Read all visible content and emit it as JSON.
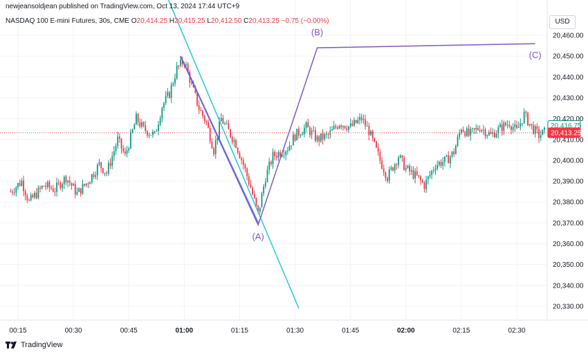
{
  "header": {
    "publisher": "newjeansoldjean published on TradingView.com, Oct 13, 2024 17:44 UTC+9",
    "symbol": "NASDAQ 100 E-mini Futures, 30s, CME",
    "o_label": "O",
    "o_value": "20,414.25",
    "h_label": "H",
    "h_value": "20,415.25",
    "l_label": "L",
    "l_value": "20,412.50",
    "c_label": "C",
    "c_value": "20,413.25 −0.75 (−0.00%)",
    "currency": "USD"
  },
  "footer": {
    "brand": "TradingView"
  },
  "chart_data": {
    "type": "candlestick",
    "title": "",
    "y_axis": {
      "position": "right",
      "range": [
        20325,
        20465
      ],
      "ticks": [
        20330,
        20340,
        20350,
        20360,
        20370,
        20380,
        20390,
        20400,
        20410,
        20420,
        20430,
        20440,
        20450,
        20460
      ],
      "tick_labels": [
        "20,330.00",
        "20,340.00",
        "20,350.00",
        "20,360.00",
        "20,370.00",
        "20,380.00",
        "20,390.00",
        "20,400.00",
        "20,410.00",
        "20,420.00",
        "20,430.00",
        "20,440.00",
        "20,450.00",
        "20,460.00"
      ]
    },
    "x_axis": {
      "range": [
        "00:13",
        "02:38"
      ],
      "ticks": [
        "00:15",
        "00:30",
        "00:45",
        "01:00",
        "01:15",
        "01:30",
        "01:45",
        "02:00",
        "02:15",
        "02:30"
      ],
      "tick_minutes": [
        15,
        30,
        45,
        60,
        75,
        90,
        105,
        120,
        135,
        150
      ],
      "bold_ticks": [
        "01:00",
        "02:00"
      ]
    },
    "grid": true,
    "up_color": "#089981",
    "down_color": "#f23645",
    "price_path": [
      [
        "00:13",
        20385
      ],
      [
        "00:16",
        20390
      ],
      [
        "00:18",
        20380
      ],
      [
        "00:22",
        20388
      ],
      [
        "00:25",
        20386
      ],
      [
        "00:28",
        20392
      ],
      [
        "00:31",
        20384
      ],
      [
        "00:34",
        20390
      ],
      [
        "00:37",
        20398
      ],
      [
        "00:39",
        20394
      ],
      [
        "00:42",
        20410
      ],
      [
        "00:44",
        20402
      ],
      [
        "00:47",
        20420
      ],
      [
        "00:49",
        20415
      ],
      [
        "00:52",
        20412
      ],
      [
        "00:54",
        20426
      ],
      [
        "00:56",
        20432
      ],
      [
        "00:58",
        20444
      ],
      [
        "01:00",
        20448
      ],
      [
        "01:02",
        20436
      ],
      [
        "01:04",
        20425
      ],
      [
        "01:06",
        20418
      ],
      [
        "01:08",
        20405
      ],
      [
        "01:10",
        20420
      ],
      [
        "01:12",
        20414
      ],
      [
        "01:14",
        20408
      ],
      [
        "01:16",
        20398
      ],
      [
        "01:18",
        20387
      ],
      [
        "01:20",
        20374
      ],
      [
        "01:22",
        20392
      ],
      [
        "01:24",
        20402
      ],
      [
        "01:26",
        20404
      ],
      [
        "01:28",
        20406
      ],
      [
        "01:30",
        20412
      ],
      [
        "01:33",
        20416
      ],
      [
        "01:36",
        20410
      ],
      [
        "01:39",
        20412
      ],
      [
        "01:42",
        20418
      ],
      [
        "01:45",
        20416
      ],
      [
        "01:48",
        20420
      ],
      [
        "01:50",
        20414
      ],
      [
        "01:53",
        20400
      ],
      [
        "01:55",
        20392
      ],
      [
        "01:58",
        20402
      ],
      [
        "02:00",
        20396
      ],
      [
        "02:03",
        20392
      ],
      [
        "02:05",
        20388
      ],
      [
        "02:08",
        20398
      ],
      [
        "02:11",
        20400
      ],
      [
        "02:13",
        20404
      ],
      [
        "02:15",
        20416
      ],
      [
        "02:17",
        20412
      ],
      [
        "02:20",
        20416
      ],
      [
        "02:23",
        20412
      ],
      [
        "02:26",
        20416
      ],
      [
        "02:28",
        20418
      ],
      [
        "02:30",
        20414
      ],
      [
        "02:32",
        20422
      ],
      [
        "02:34",
        20416
      ],
      [
        "02:36",
        20412
      ],
      [
        "02:38",
        20414
      ]
    ],
    "last_price": {
      "label": "20,413.25",
      "value": 20413.25,
      "color": "#f23645"
    },
    "second_price": {
      "label": "20,416.75",
      "value": 20416.75,
      "color": "#089981"
    },
    "drawings": {
      "trend_line": {
        "color": "#26c6da",
        "points": [
          [
            "00:55",
            20480
          ],
          [
            "01:31",
            20329
          ]
        ]
      },
      "blue_segment": {
        "color": "#2962ff",
        "points": [
          [
            "00:59",
            20450
          ],
          [
            "01:20",
            20370
          ]
        ]
      },
      "elliott": {
        "color": "#7e57c2",
        "points": [
          [
            "00:59",
            20450
          ],
          [
            "01:20",
            20369
          ],
          [
            "01:36",
            20454
          ],
          [
            "02:35",
            20456
          ]
        ],
        "labels": [
          {
            "text": "(A)",
            "time": "01:20",
            "price": 20362
          },
          {
            "text": "(B)",
            "time": "01:36",
            "price": 20460
          },
          {
            "text": "(C)",
            "time": "02:35",
            "price": 20449
          }
        ]
      }
    }
  }
}
